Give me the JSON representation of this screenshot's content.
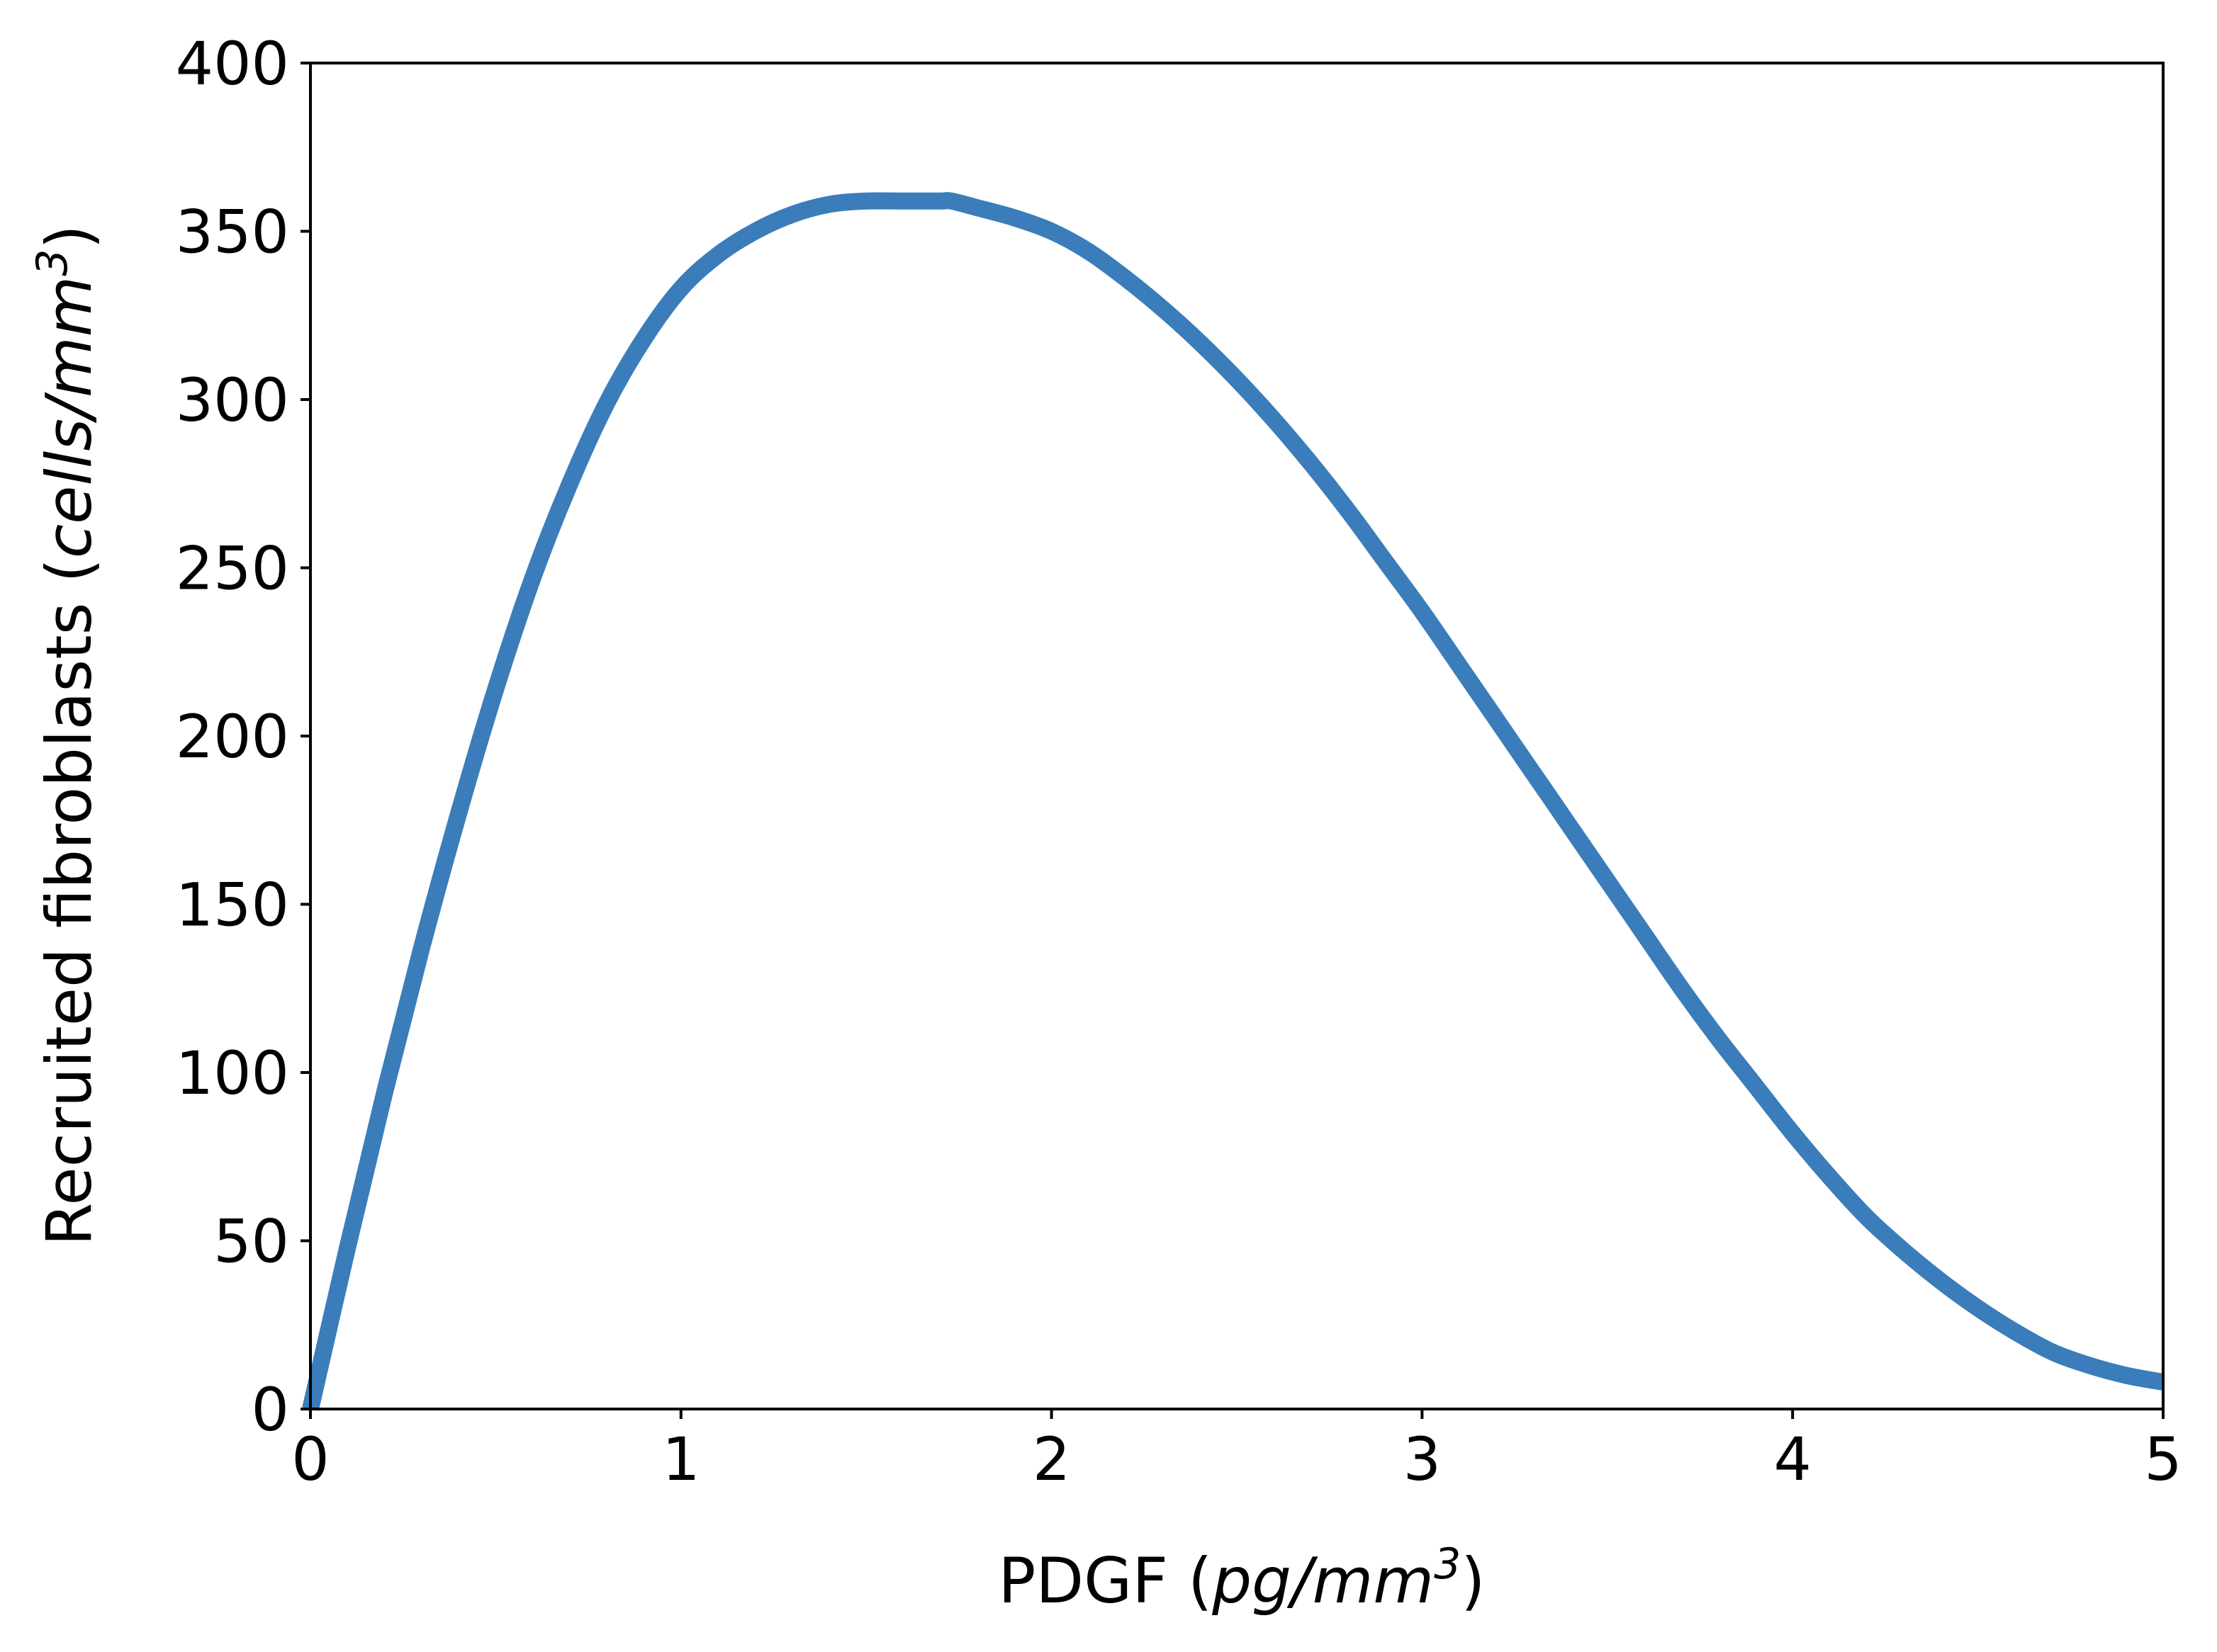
{
  "chart_data": {
    "type": "line",
    "title": "",
    "xlabel": {
      "prefix": "PDGF (",
      "unit_main": "pg/mm",
      "unit_exp": "3",
      "suffix": ")"
    },
    "ylabel": {
      "prefix": "Recruited fibroblasts (",
      "unit_main": "cells/mm",
      "unit_exp": "3",
      "suffix": ")"
    },
    "xlim": [
      0,
      5
    ],
    "ylim": [
      0,
      400
    ],
    "xticks": [
      0,
      1,
      2,
      3,
      4,
      5
    ],
    "xtick_labels": [
      "0",
      "1",
      "2",
      "3",
      "4",
      "5"
    ],
    "yticks": [
      0,
      50,
      100,
      150,
      200,
      250,
      300,
      350,
      400
    ],
    "ytick_labels": [
      "0",
      "50",
      "100",
      "150",
      "200",
      "250",
      "300",
      "350",
      "400"
    ],
    "grid": false,
    "legend": "none",
    "series": [
      {
        "color": "#3a7dba",
        "x": [
          0,
          0.1,
          0.2,
          0.3,
          0.4,
          0.5,
          0.6,
          0.7,
          0.8,
          0.9,
          1.0,
          1.1,
          1.2,
          1.3,
          1.4,
          1.5,
          1.6,
          1.7,
          1.73,
          1.8,
          1.9,
          2.0,
          2.1,
          2.2,
          2.3,
          2.4,
          2.5,
          2.6,
          2.7,
          2.8,
          2.9,
          3.0,
          3.1,
          3.2,
          3.3,
          3.4,
          3.5,
          3.6,
          3.7,
          3.8,
          3.9,
          4.0,
          4.1,
          4.2,
          4.3,
          4.4,
          4.5,
          4.6,
          4.7,
          4.8,
          4.9,
          5.0
        ],
        "y": [
          0,
          48,
          94,
          137,
          177,
          214,
          247,
          275,
          299,
          318,
          333,
          343,
          350,
          355,
          358,
          359,
          359,
          359,
          359,
          357,
          354,
          350,
          344,
          336,
          327,
          317,
          306,
          294,
          281,
          267,
          252,
          237,
          221,
          205,
          189,
          173,
          157,
          141,
          125,
          110,
          96,
          82,
          69,
          57,
          47,
          38,
          30,
          23,
          17,
          13,
          10,
          8
        ]
      }
    ]
  }
}
